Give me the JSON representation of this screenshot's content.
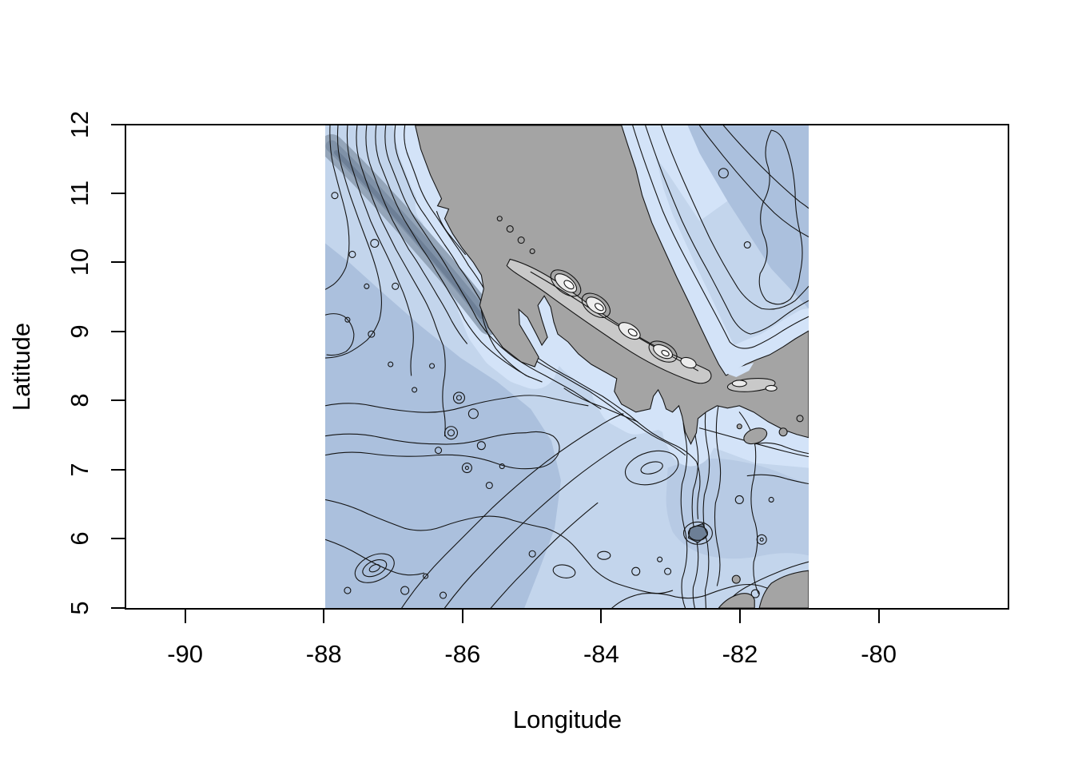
{
  "figure": {
    "kind": "contour-bathymetry-map",
    "region_shown": "Central America: Nicaragua, Costa Rica, Panama and adjacent Pacific / Caribbean sea floor"
  },
  "axes": {
    "x": {
      "title": "Longitude",
      "ticks": [
        {
          "label": "-90",
          "value": -90
        },
        {
          "label": "-88",
          "value": -88
        },
        {
          "label": "-86",
          "value": -86
        },
        {
          "label": "-84",
          "value": -84
        },
        {
          "label": "-82",
          "value": -82
        },
        {
          "label": "-80",
          "value": -80
        }
      ]
    },
    "y": {
      "title": "Latitude",
      "ticks": [
        {
          "label": "5",
          "value": 5
        },
        {
          "label": "6",
          "value": 6
        },
        {
          "label": "7",
          "value": 7
        },
        {
          "label": "8",
          "value": 8
        },
        {
          "label": "9",
          "value": 9
        },
        {
          "label": "10",
          "value": 10
        },
        {
          "label": "11",
          "value": 11
        },
        {
          "label": "12",
          "value": 12
        }
      ]
    }
  },
  "map": {
    "extent": {
      "lon_min": -88,
      "lon_max": -81,
      "lat_min": 5,
      "lat_max": 12
    },
    "features": [
      "land",
      "mountain-ridge",
      "ocean-trench",
      "seamount-contours",
      "continental-slope-contours",
      "peninsulas",
      "islands"
    ],
    "palette": {
      "axis": "#000000",
      "contour": "#141414",
      "sea_shallow": "#d3e3f8",
      "sea_mid": "#c3d5ec",
      "sea_deep": "#abc0dd",
      "sea_deep2": "#b7cae4",
      "trench_outer": "#94a5b9",
      "trench_mid": "#7f91a7",
      "trench_core": "#6d7f96",
      "land": "#a4a4a4",
      "ridge": "#c9c9c9",
      "ridge_core": "#ececec",
      "peak": "#fbfbfb"
    }
  }
}
